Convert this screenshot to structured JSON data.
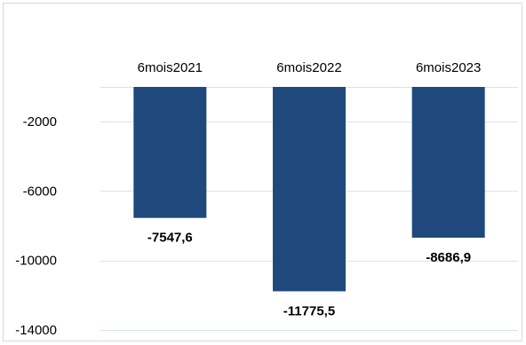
{
  "chart_data": {
    "type": "bar",
    "categories": [
      "6mois2021",
      "6mois2022",
      "6mois2023"
    ],
    "values": [
      -7547.6,
      -11775.5,
      -8686.9
    ],
    "data_labels": [
      "-7547,6",
      "-11775,5",
      "-8686,9"
    ],
    "y_ticks": [
      "-2000",
      "-6000",
      "-10000",
      "-14000"
    ],
    "y_tick_values": [
      -2000,
      -6000,
      -10000,
      -14000
    ],
    "ylim": [
      -14000,
      0
    ],
    "title": "",
    "xlabel": "",
    "ylabel": "",
    "grid": true,
    "legend": "none",
    "category_axis_position": "top",
    "bar_color": "#1F497D",
    "gridline_color": "#D6E3F2"
  }
}
